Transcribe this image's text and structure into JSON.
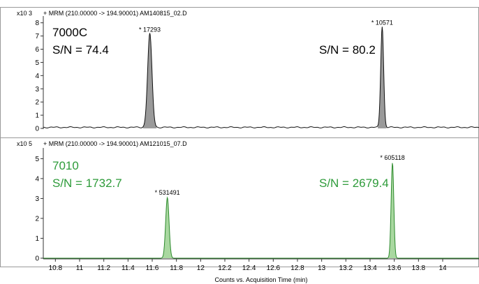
{
  "chart_data": [
    {
      "type": "line",
      "title": "+ MRM (210.00000 -> 194.90001) AM140815_02.D",
      "scale_label": "x10 3",
      "ylim": [
        0,
        8.3
      ],
      "yticks": [
        0,
        1,
        2,
        3,
        4,
        5,
        6,
        7,
        8
      ],
      "xlim": [
        10.7,
        14.3
      ],
      "instrument_label": "7000C",
      "series": [
        {
          "color": "#111111",
          "fill": "#9a9a9a",
          "baseline": 0.08,
          "noise": 0.05,
          "peaks": [
            {
              "rt": 11.58,
              "height": 7.1,
              "width": 0.018,
              "label": "* 17293",
              "sn_label": "S/N = 74.4"
            },
            {
              "rt": 13.5,
              "height": 7.65,
              "width": 0.012,
              "label": "* 10571",
              "sn_label": "S/N = 80.2"
            }
          ]
        }
      ]
    },
    {
      "type": "line",
      "title": "+ MRM (210.00000 -> 194.90001) AM121015_07.D",
      "scale_label": "x10 5",
      "ylim": [
        0,
        5.4
      ],
      "yticks": [
        0,
        1,
        2,
        3,
        4,
        5
      ],
      "xlim": [
        10.7,
        14.3
      ],
      "instrument_label": "7010",
      "xlabel": "Counts vs. Acquisition Time (min)",
      "xticks": [
        10.8,
        11,
        11.2,
        11.4,
        11.6,
        11.8,
        12,
        12.2,
        12.4,
        12.6,
        12.8,
        13,
        13.2,
        13.4,
        13.6,
        13.8,
        14
      ],
      "series": [
        {
          "color": "#2e8b2e",
          "fill": "#a9d8a0",
          "baseline": 0,
          "noise": 0,
          "peaks": [
            {
              "rt": 11.725,
              "height": 3.05,
              "width": 0.014,
              "label": "* 531491",
              "sn_label": "S/N = 1732.7"
            },
            {
              "rt": 13.585,
              "height": 4.8,
              "width": 0.011,
              "label": "* 605118",
              "sn_label": "S/N = 2679.4"
            }
          ]
        }
      ]
    }
  ],
  "colors": {
    "panel_border": "#9a9a9a",
    "axis": "#333333",
    "text": "#000000",
    "green_text": "#2e9b3a"
  }
}
